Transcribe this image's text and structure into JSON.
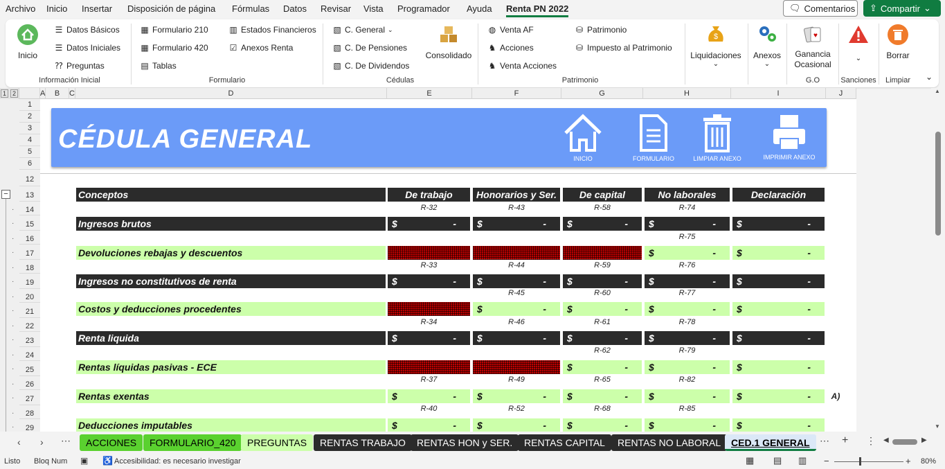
{
  "menu": {
    "items": [
      "Archivo",
      "Inicio",
      "Insertar",
      "Disposición de página",
      "Fórmulas",
      "Datos",
      "Revisar",
      "Vista",
      "Programador",
      "Ayuda",
      "Renta PN 2022"
    ],
    "comments": "Comentarios",
    "share": "Compartir"
  },
  "ribbon": {
    "inicio": "Inicio",
    "info": [
      "Datos Básicos",
      "Datos Iniciales",
      "Preguntas"
    ],
    "info_group": "Información Inicial",
    "form": [
      "Formulario 210",
      "Formulario 420",
      "Tablas"
    ],
    "form2": [
      "Estados Financieros",
      "Anexos Renta"
    ],
    "form_group": "Formulario",
    "ced": [
      "C. General",
      "C. De Pensiones",
      "C. De Dividendos"
    ],
    "consolidado": "Consolidado",
    "ced_group": "Cédulas",
    "pat": [
      "Venta AF",
      "Acciones",
      "Venta Acciones"
    ],
    "pat2": [
      "Patrimonio",
      "Impuesto al Patrimonio"
    ],
    "pat_group": "Patrimonio",
    "liquidaciones": "Liquidaciones",
    "anexos": "Anexos",
    "ganancia": "Ganancia Ocasional",
    "go_group": "G.O",
    "sanciones_group": "Sanciones",
    "borrar": "Borrar",
    "limpiar_group": "Limpiar"
  },
  "columns": [
    "A",
    "B",
    "C",
    "D",
    "E",
    "F",
    "G",
    "H",
    "I",
    "J"
  ],
  "outline_levels": [
    "1",
    "2"
  ],
  "rows": [
    "1",
    "2",
    "3",
    "4",
    "5",
    "6",
    "12",
    "13",
    "14",
    "15",
    "16",
    "17",
    "18",
    "19",
    "20",
    "21",
    "22",
    "23",
    "24",
    "25",
    "26",
    "27",
    "28",
    "29"
  ],
  "banner": {
    "title": "CÉDULA GENERAL",
    "buttons": [
      "INICIO",
      "FORMULARIO",
      "LIMPIAR ANEXO",
      "IMPRIMIR ANEXO"
    ]
  },
  "table": {
    "headers": [
      "Conceptos",
      "De trabajo",
      "Honorarios y Ser.",
      "De capital",
      "No laborales",
      "Declaración"
    ],
    "currency": "$",
    "dash": "-",
    "rows": [
      {
        "label": "Ingresos brutos",
        "style": "dark",
        "refs": [
          "R-32",
          "R-43",
          "R-58",
          "R-74"
        ],
        "cells": [
          "m",
          "m",
          "m",
          "m",
          "m"
        ]
      },
      {
        "label": "Devoluciones rebajas y descuentos",
        "style": "green",
        "refs": [
          "",
          "",
          "",
          "R-75"
        ],
        "cells": [
          "x",
          "x",
          "x",
          "m",
          "m"
        ]
      },
      {
        "label": "Ingresos no constitutivos de renta",
        "style": "dark",
        "refs": [
          "R-33",
          "R-44",
          "R-59",
          "R-76"
        ],
        "cells": [
          "m",
          "m",
          "m",
          "m",
          "m"
        ]
      },
      {
        "label": "Costos y deducciones procedentes",
        "style": "green",
        "refs": [
          "",
          "R-45",
          "R-60",
          "R-77"
        ],
        "cells": [
          "x",
          "m",
          "m",
          "m",
          "m"
        ]
      },
      {
        "label": "Renta liquida",
        "style": "dark",
        "refs": [
          "R-34",
          "R-46",
          "R-61",
          "R-78"
        ],
        "cells": [
          "m",
          "m",
          "m",
          "m",
          "m"
        ]
      },
      {
        "label": "Rentas líquidas pasivas - ECE",
        "style": "green",
        "refs": [
          "",
          "",
          "R-62",
          "R-79"
        ],
        "cells": [
          "x",
          "x",
          "m",
          "m",
          "m"
        ]
      },
      {
        "label": "Rentas exentas",
        "style": "green",
        "refs": [
          "R-37",
          "R-49",
          "R-65",
          "R-82"
        ],
        "cells": [
          "m",
          "m",
          "m",
          "m",
          "m"
        ],
        "note": "A)"
      },
      {
        "label": "Deducciones imputables",
        "style": "green",
        "refs": [
          "R-40",
          "R-52",
          "R-68",
          "R-85"
        ],
        "cells": [
          "m",
          "m",
          "m",
          "m",
          "m"
        ]
      }
    ]
  },
  "tabs": [
    {
      "label": "ACCIONES",
      "bg": "#5ad12f",
      "fg": "#000"
    },
    {
      "label": "FORMULARIO_420",
      "bg": "#5ad12f",
      "fg": "#000"
    },
    {
      "label": "PREGUNTAS",
      "bg": "#ccffaa",
      "fg": "#000"
    },
    {
      "label": "RENTAS TRABAJO",
      "bg": "#2b2b2b",
      "fg": "#fff"
    },
    {
      "label": "RENTAS HON y SER.",
      "bg": "#2b2b2b",
      "fg": "#fff"
    },
    {
      "label": "RENTAS CAPITAL",
      "bg": "#2b2b2b",
      "fg": "#fff"
    },
    {
      "label": "RENTAS NO LABORAL",
      "bg": "#2b2b2b",
      "fg": "#fff"
    },
    {
      "label": "CED.1 GENERAL",
      "bg": "#dbe8f7",
      "fg": "#000"
    }
  ],
  "status": {
    "ready": "Listo",
    "numlock": "Bloq Num",
    "accessibility": "Accesibilidad: es necesario investigar",
    "zoom": "80%"
  },
  "colors": {
    "accent": "#107c41",
    "banner": "#6b9bf8",
    "dark": "#2b2b2b",
    "green": "#ccffaa",
    "red": "#c00000"
  }
}
